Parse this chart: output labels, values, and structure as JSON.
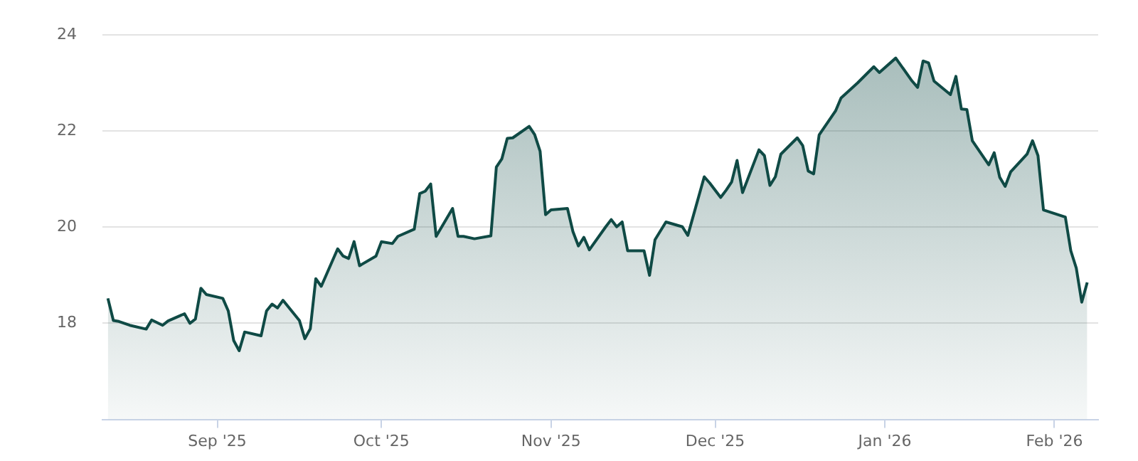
{
  "chart_data": {
    "type": "area",
    "xlim": [
      "2025-08-11",
      "2026-02-09"
    ],
    "ylim": [
      16,
      24
    ],
    "yticks": [
      18,
      20,
      22,
      24
    ],
    "xticks": [
      {
        "value": "2025-09-01",
        "label": "Sep '25"
      },
      {
        "value": "2025-10-01",
        "label": "Oct '25"
      },
      {
        "value": "2025-11-01",
        "label": "Nov '25"
      },
      {
        "value": "2025-12-01",
        "label": "Dec '25"
      },
      {
        "value": "2026-01-01",
        "label": "Jan '26"
      },
      {
        "value": "2026-02-01",
        "label": "Feb '26"
      }
    ],
    "grid": "y",
    "legend": false,
    "marker": "none",
    "line_style": "solid",
    "x": [
      "2025-08-12",
      "2025-08-13",
      "2025-08-14",
      "2025-08-16",
      "2025-08-19",
      "2025-08-20",
      "2025-08-22",
      "2025-08-23",
      "2025-08-26",
      "2025-08-27",
      "2025-08-28",
      "2025-08-29",
      "2025-08-30",
      "2025-09-02",
      "2025-09-03",
      "2025-09-04",
      "2025-09-05",
      "2025-09-06",
      "2025-09-09",
      "2025-09-10",
      "2025-09-11",
      "2025-09-12",
      "2025-09-13",
      "2025-09-16",
      "2025-09-17",
      "2025-09-18",
      "2025-09-19",
      "2025-09-20",
      "2025-09-23",
      "2025-09-24",
      "2025-09-25",
      "2025-09-26",
      "2025-09-27",
      "2025-09-30",
      "2025-10-01",
      "2025-10-03",
      "2025-10-04",
      "2025-10-07",
      "2025-10-08",
      "2025-10-09",
      "2025-10-10",
      "2025-10-11",
      "2025-10-14",
      "2025-10-15",
      "2025-10-16",
      "2025-10-18",
      "2025-10-21",
      "2025-10-22",
      "2025-10-23",
      "2025-10-24",
      "2025-10-25",
      "2025-10-28",
      "2025-10-29",
      "2025-10-30",
      "2025-10-31",
      "2025-11-01",
      "2025-11-04",
      "2025-11-05",
      "2025-11-06",
      "2025-11-07",
      "2025-11-08",
      "2025-11-11",
      "2025-11-12",
      "2025-11-13",
      "2025-11-14",
      "2025-11-15",
      "2025-11-18",
      "2025-11-19",
      "2025-11-20",
      "2025-11-22",
      "2025-11-25",
      "2025-11-26",
      "2025-11-29",
      "2025-11-30",
      "2025-12-02",
      "2025-12-03",
      "2025-12-04",
      "2025-12-05",
      "2025-12-06",
      "2025-12-09",
      "2025-12-10",
      "2025-12-11",
      "2025-12-12",
      "2025-12-13",
      "2025-12-16",
      "2025-12-17",
      "2025-12-18",
      "2025-12-19",
      "2025-12-20",
      "2025-12-23",
      "2025-12-24",
      "2025-12-27",
      "2025-12-30",
      "2025-12-31",
      "2026-01-03",
      "2026-01-06",
      "2026-01-07",
      "2026-01-08",
      "2026-01-09",
      "2026-01-10",
      "2026-01-13",
      "2026-01-14",
      "2026-01-15",
      "2026-01-16",
      "2026-01-17",
      "2026-01-20",
      "2026-01-21",
      "2026-01-22",
      "2026-01-23",
      "2026-01-24",
      "2026-01-27",
      "2026-01-28",
      "2026-01-29",
      "2026-01-30",
      "2026-02-03",
      "2026-02-04",
      "2026-02-05",
      "2026-02-06",
      "2026-02-07"
    ],
    "series": [
      {
        "color": "#0f4a45",
        "values": [
          18.52,
          18.06,
          18.04,
          17.96,
          17.88,
          18.07,
          17.96,
          18.05,
          18.2,
          18.0,
          18.09,
          18.73,
          18.6,
          18.52,
          18.26,
          17.64,
          17.43,
          17.82,
          17.74,
          18.26,
          18.4,
          18.32,
          18.48,
          18.06,
          17.68,
          17.89,
          18.93,
          18.77,
          19.55,
          19.4,
          19.35,
          19.7,
          19.2,
          19.4,
          19.7,
          19.66,
          19.81,
          19.96,
          20.7,
          20.75,
          20.9,
          19.81,
          20.39,
          19.81,
          19.81,
          19.76,
          19.82,
          21.25,
          21.42,
          21.85,
          21.86,
          22.1,
          21.93,
          21.58,
          20.26,
          20.36,
          20.39,
          19.91,
          19.61,
          19.79,
          19.53,
          20.01,
          20.16,
          20.01,
          20.11,
          19.51,
          19.51,
          19.0,
          19.74,
          20.11,
          20.01,
          19.83,
          21.05,
          20.92,
          20.62,
          20.77,
          20.94,
          21.39,
          20.72,
          21.61,
          21.49,
          20.87,
          21.05,
          21.52,
          21.86,
          21.7,
          21.17,
          21.11,
          21.92,
          22.42,
          22.69,
          23.0,
          23.34,
          23.22,
          23.52,
          23.04,
          22.91,
          23.46,
          23.42,
          23.04,
          22.76,
          23.14,
          22.46,
          22.45,
          21.8,
          21.3,
          21.55,
          21.04,
          20.85,
          21.15,
          21.52,
          21.8,
          21.49,
          20.36,
          20.21,
          19.51,
          19.15,
          18.44,
          18.85
        ]
      }
    ]
  }
}
